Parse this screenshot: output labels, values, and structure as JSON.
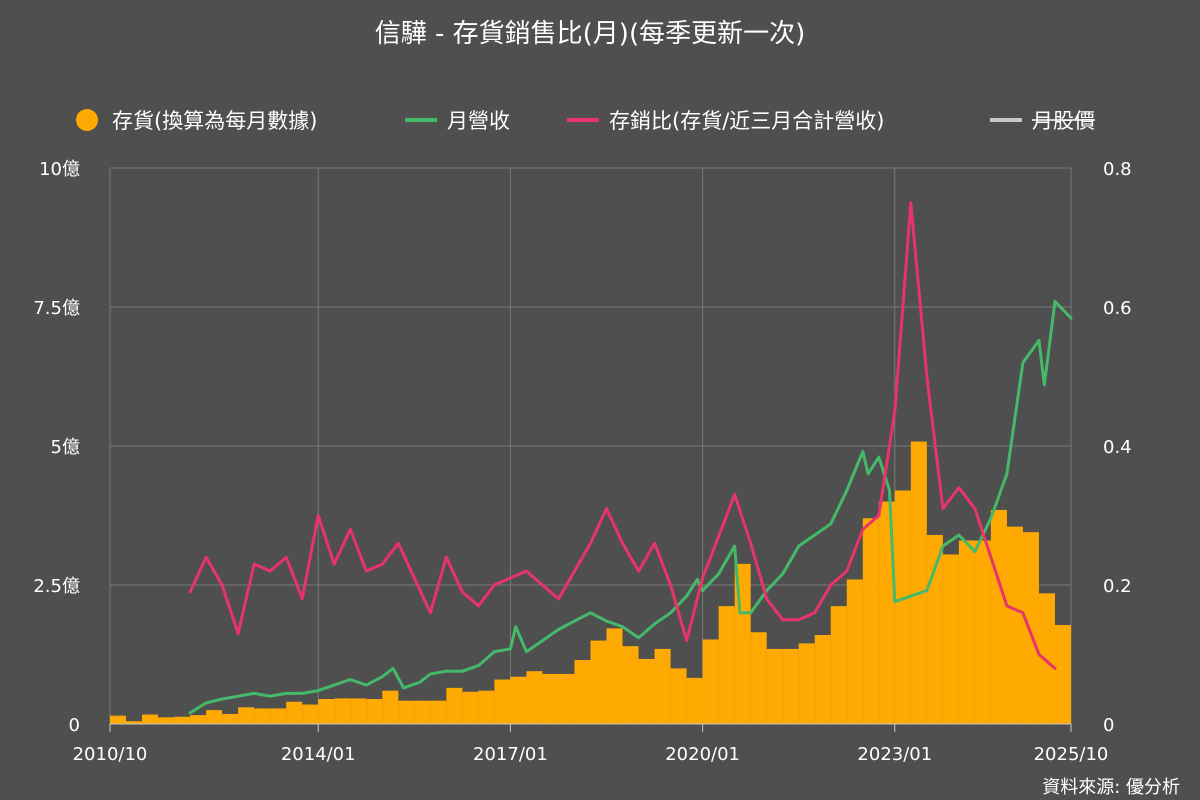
{
  "chart_data": {
    "type": "bar+line",
    "title": "信驊 - 存貨銷售比(月)(每季更新一次)",
    "source": "資料來源: 優分析",
    "legend": {
      "placement": "top",
      "items": [
        {
          "label": "存貨(換算為每月數據)",
          "color": "#ffaa00",
          "marker": "circle"
        },
        {
          "label": "月營收",
          "color": "#45b96a",
          "marker": "line"
        },
        {
          "label": "存銷比(存貨/近三月合計營收)",
          "color": "#e8336b",
          "marker": "line"
        },
        {
          "label": "月股價",
          "color": "#c8c8c8",
          "marker": "line",
          "disabled": true
        }
      ]
    },
    "x_axis": {
      "start": "2010/10",
      "end": "2025/10",
      "ticks": [
        "2010/10",
        "2014/01",
        "2017/01",
        "2020/01",
        "2023/01",
        "2025/10"
      ]
    },
    "y_left": {
      "unit": "億",
      "range": [
        0,
        10
      ],
      "ticks": [
        {
          "v": 0,
          "label": "0"
        },
        {
          "v": 2.5,
          "label": "2.5億"
        },
        {
          "v": 5,
          "label": "5億"
        },
        {
          "v": 7.5,
          "label": "7.5億"
        },
        {
          "v": 10,
          "label": "10億"
        }
      ]
    },
    "y_right": {
      "range": [
        0,
        0.8
      ],
      "ticks": [
        {
          "v": 0,
          "label": "0"
        },
        {
          "v": 0.2,
          "label": "0.2"
        },
        {
          "v": 0.4,
          "label": "0.4"
        },
        {
          "v": 0.6,
          "label": "0.6"
        },
        {
          "v": 0.8,
          "label": "0.8"
        }
      ]
    },
    "grid": true,
    "series": [
      {
        "name": "存貨(換算為每月數據)",
        "type": "bar",
        "axis": "left",
        "color": "#ffaa00",
        "points": [
          [
            "2010/10",
            0.15
          ],
          [
            "2011/01",
            0.05
          ],
          [
            "2011/04",
            0.17
          ],
          [
            "2011/07",
            0.12
          ],
          [
            "2011/10",
            0.13
          ],
          [
            "2012/01",
            0.16
          ],
          [
            "2012/04",
            0.25
          ],
          [
            "2012/07",
            0.18
          ],
          [
            "2012/10",
            0.3
          ],
          [
            "2013/01",
            0.28
          ],
          [
            "2013/04",
            0.28
          ],
          [
            "2013/07",
            0.4
          ],
          [
            "2013/10",
            0.35
          ],
          [
            "2014/01",
            0.45
          ],
          [
            "2014/04",
            0.46
          ],
          [
            "2014/07",
            0.46
          ],
          [
            "2014/10",
            0.45
          ],
          [
            "2015/01",
            0.6
          ],
          [
            "2015/04",
            0.42
          ],
          [
            "2015/07",
            0.42
          ],
          [
            "2015/10",
            0.42
          ],
          [
            "2016/01",
            0.65
          ],
          [
            "2016/04",
            0.58
          ],
          [
            "2016/07",
            0.6
          ],
          [
            "2016/10",
            0.8
          ],
          [
            "2017/01",
            0.85
          ],
          [
            "2017/04",
            0.95
          ],
          [
            "2017/07",
            0.9
          ],
          [
            "2017/10",
            0.9
          ],
          [
            "2018/01",
            1.15
          ],
          [
            "2018/04",
            1.5
          ],
          [
            "2018/07",
            1.72
          ],
          [
            "2018/10",
            1.4
          ],
          [
            "2019/01",
            1.17
          ],
          [
            "2019/04",
            1.35
          ],
          [
            "2019/07",
            1.0
          ],
          [
            "2019/10",
            0.83
          ],
          [
            "2020/01",
            1.52
          ],
          [
            "2020/04",
            2.12
          ],
          [
            "2020/07",
            2.88
          ],
          [
            "2020/10",
            1.65
          ],
          [
            "2021/01",
            1.35
          ],
          [
            "2021/04",
            1.35
          ],
          [
            "2021/07",
            1.45
          ],
          [
            "2021/10",
            1.6
          ],
          [
            "2022/01",
            2.12
          ],
          [
            "2022/04",
            2.6
          ],
          [
            "2022/07",
            3.7
          ],
          [
            "2022/10",
            4.0
          ],
          [
            "2023/01",
            4.2
          ],
          [
            "2023/04",
            5.08
          ],
          [
            "2023/07",
            3.4
          ],
          [
            "2023/10",
            3.05
          ],
          [
            "2024/01",
            3.3
          ],
          [
            "2024/04",
            3.3
          ],
          [
            "2024/07",
            3.85
          ],
          [
            "2024/10",
            3.55
          ],
          [
            "2025/01",
            3.45
          ],
          [
            "2025/04",
            2.35
          ],
          [
            "2025/07",
            1.78
          ]
        ]
      },
      {
        "name": "月營收",
        "type": "line",
        "axis": "left",
        "color": "#45b96a",
        "points": [
          [
            "2012/01",
            0.2
          ],
          [
            "2012/04",
            0.38
          ],
          [
            "2012/07",
            0.45
          ],
          [
            "2012/10",
            0.5
          ],
          [
            "2013/01",
            0.55
          ],
          [
            "2013/04",
            0.5
          ],
          [
            "2013/07",
            0.55
          ],
          [
            "2013/10",
            0.55
          ],
          [
            "2014/01",
            0.6
          ],
          [
            "2014/04",
            0.7
          ],
          [
            "2014/07",
            0.8
          ],
          [
            "2014/10",
            0.7
          ],
          [
            "2015/01",
            0.85
          ],
          [
            "2015/03",
            1.0
          ],
          [
            "2015/05",
            0.65
          ],
          [
            "2015/08",
            0.75
          ],
          [
            "2015/10",
            0.9
          ],
          [
            "2016/01",
            0.95
          ],
          [
            "2016/04",
            0.95
          ],
          [
            "2016/07",
            1.05
          ],
          [
            "2016/10",
            1.3
          ],
          [
            "2017/01",
            1.35
          ],
          [
            "2017/02",
            1.75
          ],
          [
            "2017/04",
            1.3
          ],
          [
            "2017/07",
            1.5
          ],
          [
            "2017/10",
            1.7
          ],
          [
            "2018/01",
            1.85
          ],
          [
            "2018/04",
            2.0
          ],
          [
            "2018/07",
            1.85
          ],
          [
            "2018/10",
            1.75
          ],
          [
            "2019/01",
            1.55
          ],
          [
            "2019/04",
            1.8
          ],
          [
            "2019/07",
            2.0
          ],
          [
            "2019/10",
            2.3
          ],
          [
            "2019/12",
            2.6
          ],
          [
            "2020/01",
            2.4
          ],
          [
            "2020/04",
            2.7
          ],
          [
            "2020/07",
            3.2
          ],
          [
            "2020/08",
            2.0
          ],
          [
            "2020/10",
            2.0
          ],
          [
            "2021/01",
            2.4
          ],
          [
            "2021/04",
            2.7
          ],
          [
            "2021/07",
            3.2
          ],
          [
            "2021/10",
            3.4
          ],
          [
            "2022/01",
            3.6
          ],
          [
            "2022/04",
            4.2
          ],
          [
            "2022/07",
            4.9
          ],
          [
            "2022/08",
            4.5
          ],
          [
            "2022/10",
            4.8
          ],
          [
            "2022/12",
            4.2
          ],
          [
            "2023/01",
            2.2
          ],
          [
            "2023/04",
            2.3
          ],
          [
            "2023/07",
            2.4
          ],
          [
            "2023/10",
            3.2
          ],
          [
            "2024/01",
            3.4
          ],
          [
            "2024/04",
            3.1
          ],
          [
            "2024/07",
            3.7
          ],
          [
            "2024/10",
            4.5
          ],
          [
            "2025/01",
            6.5
          ],
          [
            "2025/04",
            6.9
          ],
          [
            "2025/05",
            6.1
          ],
          [
            "2025/07",
            7.6
          ],
          [
            "2025/10",
            7.3
          ]
        ]
      },
      {
        "name": "存銷比(存貨/近三月合計營收)",
        "type": "line",
        "axis": "right",
        "color": "#e8336b",
        "points": [
          [
            "2012/01",
            0.19
          ],
          [
            "2012/04",
            0.24
          ],
          [
            "2012/07",
            0.2
          ],
          [
            "2012/10",
            0.13
          ],
          [
            "2013/01",
            0.23
          ],
          [
            "2013/04",
            0.22
          ],
          [
            "2013/07",
            0.24
          ],
          [
            "2013/10",
            0.18
          ],
          [
            "2014/01",
            0.3
          ],
          [
            "2014/04",
            0.23
          ],
          [
            "2014/07",
            0.28
          ],
          [
            "2014/10",
            0.22
          ],
          [
            "2015/01",
            0.23
          ],
          [
            "2015/04",
            0.26
          ],
          [
            "2015/07",
            0.21
          ],
          [
            "2015/10",
            0.16
          ],
          [
            "2016/01",
            0.24
          ],
          [
            "2016/04",
            0.19
          ],
          [
            "2016/07",
            0.17
          ],
          [
            "2016/10",
            0.2
          ],
          [
            "2017/01",
            0.21
          ],
          [
            "2017/04",
            0.22
          ],
          [
            "2017/07",
            0.2
          ],
          [
            "2017/10",
            0.18
          ],
          [
            "2018/01",
            0.22
          ],
          [
            "2018/04",
            0.26
          ],
          [
            "2018/07",
            0.31
          ],
          [
            "2018/10",
            0.26
          ],
          [
            "2019/01",
            0.22
          ],
          [
            "2019/04",
            0.26
          ],
          [
            "2019/07",
            0.2
          ],
          [
            "2019/10",
            0.12
          ],
          [
            "2020/01",
            0.21
          ],
          [
            "2020/04",
            0.27
          ],
          [
            "2020/07",
            0.33
          ],
          [
            "2020/10",
            0.26
          ],
          [
            "2021/01",
            0.18
          ],
          [
            "2021/04",
            0.15
          ],
          [
            "2021/07",
            0.15
          ],
          [
            "2021/10",
            0.16
          ],
          [
            "2022/01",
            0.2
          ],
          [
            "2022/04",
            0.22
          ],
          [
            "2022/07",
            0.28
          ],
          [
            "2022/10",
            0.3
          ],
          [
            "2023/01",
            0.45
          ],
          [
            "2023/04",
            0.75
          ],
          [
            "2023/07",
            0.5
          ],
          [
            "2023/10",
            0.31
          ],
          [
            "2024/01",
            0.34
          ],
          [
            "2024/04",
            0.31
          ],
          [
            "2024/07",
            0.24
          ],
          [
            "2024/10",
            0.17
          ],
          [
            "2025/01",
            0.16
          ],
          [
            "2025/04",
            0.1
          ],
          [
            "2025/07",
            0.08
          ]
        ]
      }
    ]
  }
}
